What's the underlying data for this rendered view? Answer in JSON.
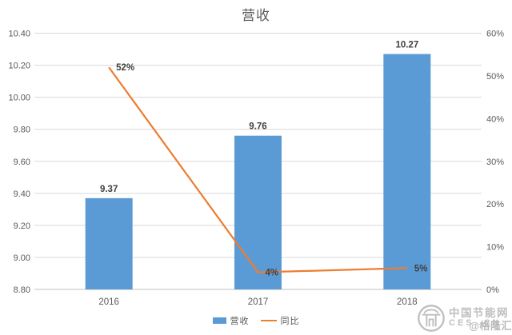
{
  "title": "营收",
  "colors": {
    "bar": "#5B9BD5",
    "line": "#ED7D31",
    "grid": "#D9D9D9",
    "axis_line": "#BFBFBF",
    "tick_text": "#595959",
    "data_label_text": "#404040",
    "watermark": "#B9B9B9"
  },
  "legend": {
    "bar_label": "营收",
    "line_label": "同比"
  },
  "watermark": {
    "line1": "中国节能网",
    "line2": "CES .CN",
    "line3": "@格隆汇"
  },
  "chart_data": {
    "type": "bar",
    "subtype": "bar+line-combo",
    "title": "营收",
    "categories": [
      "2016",
      "2017",
      "2018"
    ],
    "series": [
      {
        "name": "营收",
        "type": "bar",
        "axis": "left",
        "values": [
          9.37,
          9.76,
          10.27
        ],
        "labels": [
          "9.37",
          "9.76",
          "10.27"
        ]
      },
      {
        "name": "同比",
        "type": "line",
        "axis": "right",
        "values": [
          52,
          4,
          5
        ],
        "labels": [
          "52%",
          "4%",
          "5%"
        ]
      }
    ],
    "y_left": {
      "min": 8.8,
      "max": 10.4,
      "step": 0.2,
      "ticks": [
        "10.40",
        "10.20",
        "10.00",
        "9.80",
        "9.60",
        "9.40",
        "9.20",
        "9.00",
        "8.80"
      ]
    },
    "y_right": {
      "min": 0,
      "max": 60,
      "step": 10,
      "ticks": [
        "60%",
        "50%",
        "40%",
        "30%",
        "20%",
        "10%",
        "0%"
      ]
    },
    "xlabel": "",
    "ylabel": "",
    "grid": true,
    "legend_position": "bottom"
  }
}
